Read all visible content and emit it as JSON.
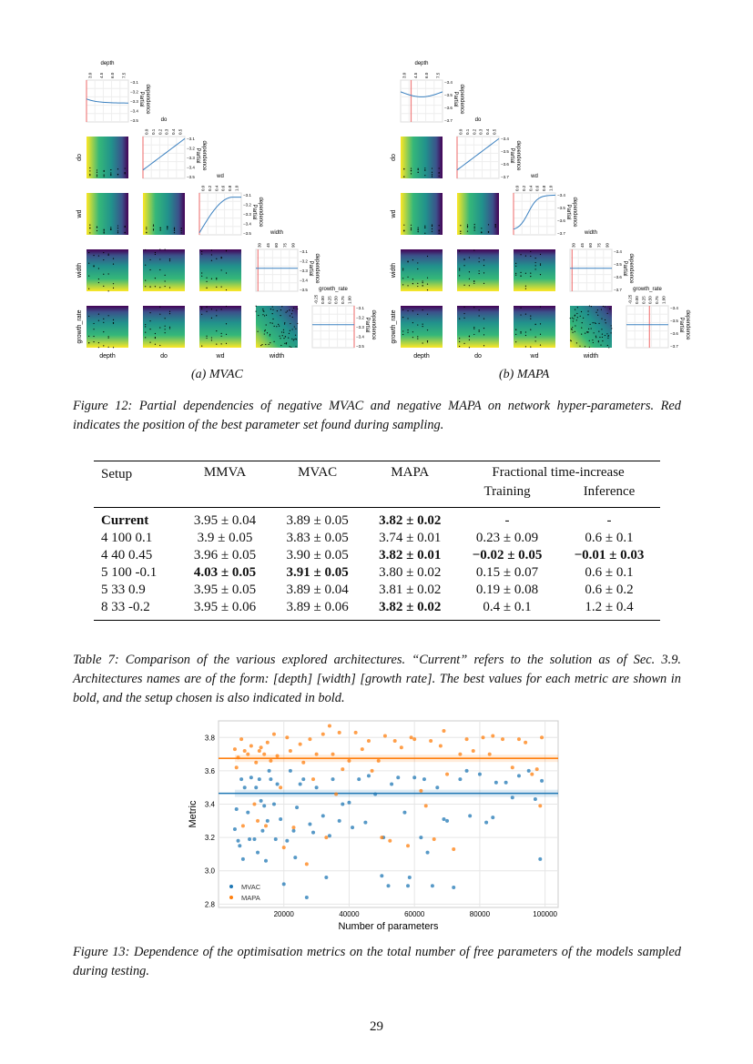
{
  "figure12": {
    "panels": [
      {
        "label": "(a) MVAC",
        "pd_ticks": [
          "−3.1",
          "−3.2",
          "−3.3",
          "−3.4",
          "−3.5"
        ],
        "best": [
          0.0,
          0.0,
          0.0,
          0.05,
          1.0
        ],
        "curves": [
          "flat-down",
          "linear-up",
          "sat-up",
          "flat",
          "flat"
        ]
      },
      {
        "label": "(b) MAPA",
        "pd_ticks": [
          "−3.4",
          "−3.5",
          "−3.6",
          "−3.7"
        ],
        "best": [
          0.25,
          0.0,
          0.0,
          0.05,
          0.55
        ],
        "curves": [
          "dip",
          "linear-up",
          "sig-up",
          "flat",
          "flat"
        ]
      }
    ],
    "params": [
      "depth",
      "do",
      "wd",
      "width",
      "growth_rate"
    ],
    "diag_ticks": [
      [
        "3.0",
        "4.5",
        "6.0",
        "7.5"
      ],
      [
        "0.0",
        "0.1",
        "0.2",
        "0.3",
        "0.4",
        "0.5"
      ],
      [
        "0.0",
        "0.2",
        "0.4",
        "0.6",
        "0.8",
        "1.0"
      ],
      [
        "30",
        "45",
        "60",
        "75",
        "90"
      ],
      [
        "-0.25",
        "0.00",
        "0.25",
        "0.50",
        "0.75",
        "1.00"
      ]
    ],
    "pd_label": "Partial dependence",
    "caption": "Figure 12: Partial dependencies of negative MVAC and negative MAPA on network hyper-parameters. Red indicates the position of the best parameter set found during sampling."
  },
  "table7": {
    "headers": [
      "Setup",
      "MMVA",
      "MVAC",
      "MAPA",
      "Fractional time-increase"
    ],
    "subheaders": [
      "Training",
      "Inference"
    ],
    "rows": [
      {
        "cells": [
          "Current",
          "3.95 ± 0.04",
          "3.89 ± 0.05",
          "3.82 ± 0.02",
          "-",
          "-"
        ],
        "bold": [
          true,
          false,
          false,
          true,
          false,
          false
        ]
      },
      {
        "cells": [
          "4 100 0.1",
          "3.9 ± 0.05",
          "3.83 ± 0.05",
          "3.74 ± 0.01",
          "0.23 ± 0.09",
          "0.6 ± 0.1"
        ],
        "bold": [
          false,
          false,
          false,
          false,
          false,
          false
        ]
      },
      {
        "cells": [
          "4 40 0.45",
          "3.96 ± 0.05",
          "3.90 ± 0.05",
          "3.82 ± 0.01",
          "−0.02 ± 0.05",
          "−0.01 ± 0.03"
        ],
        "bold": [
          false,
          false,
          false,
          true,
          true,
          true
        ]
      },
      {
        "cells": [
          "5 100 -0.1",
          "4.03 ± 0.05",
          "3.91 ± 0.05",
          "3.80 ± 0.02",
          "0.15 ± 0.07",
          "0.6 ± 0.1"
        ],
        "bold": [
          false,
          true,
          true,
          false,
          false,
          false
        ]
      },
      {
        "cells": [
          "5 33 0.9",
          "3.95 ± 0.05",
          "3.89 ± 0.04",
          "3.81 ± 0.02",
          "0.19 ± 0.08",
          "0.6 ± 0.2"
        ],
        "bold": [
          false,
          false,
          false,
          false,
          false,
          false
        ]
      },
      {
        "cells": [
          "8 33 -0.2",
          "3.95 ± 0.06",
          "3.89 ± 0.06",
          "3.82 ± 0.02",
          "0.4 ± 0.1",
          "1.2 ± 0.4"
        ],
        "bold": [
          false,
          false,
          false,
          true,
          false,
          false
        ]
      }
    ],
    "caption": "Table 7: Comparison of the various explored architectures. “Current” refers to the solution as of Sec. 3.9. Architectures names are of the form: [depth] [width] [growth rate]. The best values for each metric are shown in bold, and the setup chosen is also indicated in bold."
  },
  "chart_data": {
    "type": "scatter",
    "xlabel": "Number of parameters",
    "ylabel": "Metric",
    "xlim": [
      0,
      104000
    ],
    "ylim": [
      2.78,
      3.9
    ],
    "xticks": [
      20000,
      40000,
      60000,
      80000,
      100000
    ],
    "yticks": [
      2.8,
      3.0,
      3.2,
      3.4,
      3.6,
      3.8
    ],
    "grid": true,
    "legend": "bottom-left",
    "series": [
      {
        "name": "MVAC",
        "color": "#1f77b4",
        "trend": 3.465,
        "points": [
          [
            5000,
            3.25
          ],
          [
            5500,
            3.37
          ],
          [
            6000,
            3.18
          ],
          [
            6500,
            3.15
          ],
          [
            7000,
            3.55
          ],
          [
            7500,
            3.07
          ],
          [
            8000,
            3.5
          ],
          [
            9000,
            3.35
          ],
          [
            9500,
            3.19
          ],
          [
            10000,
            3.56
          ],
          [
            11000,
            3.19
          ],
          [
            11500,
            3.5
          ],
          [
            12000,
            3.11
          ],
          [
            12500,
            3.55
          ],
          [
            13000,
            3.42
          ],
          [
            13500,
            3.24
          ],
          [
            14000,
            3.39
          ],
          [
            14500,
            3.06
          ],
          [
            15000,
            3.3
          ],
          [
            15500,
            3.6
          ],
          [
            16000,
            3.55
          ],
          [
            17000,
            3.4
          ],
          [
            17500,
            3.19
          ],
          [
            18000,
            3.52
          ],
          [
            19000,
            3.31
          ],
          [
            20000,
            2.92
          ],
          [
            21000,
            3.18
          ],
          [
            22000,
            3.6
          ],
          [
            23000,
            3.24
          ],
          [
            23500,
            3.08
          ],
          [
            24000,
            3.38
          ],
          [
            25000,
            3.52
          ],
          [
            26000,
            3.55
          ],
          [
            27000,
            2.84
          ],
          [
            28000,
            3.28
          ],
          [
            29000,
            3.23
          ],
          [
            30000,
            3.5
          ],
          [
            32000,
            3.33
          ],
          [
            33000,
            2.96
          ],
          [
            34000,
            3.21
          ],
          [
            35000,
            3.55
          ],
          [
            37000,
            3.3
          ],
          [
            38000,
            3.4
          ],
          [
            40000,
            3.41
          ],
          [
            41000,
            3.26
          ],
          [
            43000,
            3.55
          ],
          [
            45000,
            3.29
          ],
          [
            46000,
            3.57
          ],
          [
            48000,
            3.46
          ],
          [
            50000,
            2.97
          ],
          [
            50500,
            3.2
          ],
          [
            52000,
            2.91
          ],
          [
            53000,
            3.52
          ],
          [
            55000,
            3.56
          ],
          [
            57000,
            3.35
          ],
          [
            58000,
            2.91
          ],
          [
            58500,
            2.96
          ],
          [
            60000,
            3.56
          ],
          [
            62000,
            3.2
          ],
          [
            63000,
            3.55
          ],
          [
            64000,
            3.11
          ],
          [
            65500,
            2.91
          ],
          [
            67000,
            3.5
          ],
          [
            69000,
            3.31
          ],
          [
            70000,
            3.3
          ],
          [
            72000,
            2.9
          ],
          [
            74000,
            3.55
          ],
          [
            76000,
            3.6
          ],
          [
            77000,
            3.33
          ],
          [
            80000,
            3.58
          ],
          [
            82000,
            3.29
          ],
          [
            84000,
            3.32
          ],
          [
            85000,
            3.53
          ],
          [
            88000,
            3.53
          ],
          [
            90000,
            3.44
          ],
          [
            92000,
            3.57
          ],
          [
            95000,
            3.6
          ],
          [
            97000,
            3.43
          ],
          [
            98500,
            3.07
          ],
          [
            99000,
            3.54
          ]
        ]
      },
      {
        "name": "MAPA",
        "color": "#ff7f0e",
        "trend": 3.675,
        "points": [
          [
            5000,
            3.73
          ],
          [
            5500,
            3.62
          ],
          [
            6000,
            3.68
          ],
          [
            7000,
            3.79
          ],
          [
            7500,
            3.27
          ],
          [
            8000,
            3.72
          ],
          [
            9000,
            3.7
          ],
          [
            10000,
            3.75
          ],
          [
            11000,
            3.4
          ],
          [
            11500,
            3.65
          ],
          [
            12000,
            3.3
          ],
          [
            12500,
            3.72
          ],
          [
            13000,
            3.74
          ],
          [
            14000,
            3.7
          ],
          [
            14500,
            3.27
          ],
          [
            15000,
            3.77
          ],
          [
            16000,
            3.66
          ],
          [
            17000,
            3.82
          ],
          [
            18000,
            3.69
          ],
          [
            19000,
            3.5
          ],
          [
            20000,
            3.14
          ],
          [
            21000,
            3.8
          ],
          [
            22000,
            3.72
          ],
          [
            23000,
            3.26
          ],
          [
            25000,
            3.76
          ],
          [
            26000,
            3.65
          ],
          [
            27000,
            3.04
          ],
          [
            28000,
            3.79
          ],
          [
            29000,
            3.55
          ],
          [
            30000,
            3.7
          ],
          [
            32000,
            3.82
          ],
          [
            33000,
            3.2
          ],
          [
            34000,
            3.87
          ],
          [
            35000,
            3.7
          ],
          [
            36000,
            3.46
          ],
          [
            37000,
            3.83
          ],
          [
            38000,
            3.61
          ],
          [
            40000,
            3.66
          ],
          [
            42000,
            3.83
          ],
          [
            44000,
            3.73
          ],
          [
            46000,
            3.78
          ],
          [
            47000,
            3.6
          ],
          [
            49000,
            3.66
          ],
          [
            50000,
            3.2
          ],
          [
            51000,
            3.81
          ],
          [
            52500,
            3.18
          ],
          [
            54000,
            3.78
          ],
          [
            56000,
            3.74
          ],
          [
            58000,
            3.15
          ],
          [
            59000,
            3.8
          ],
          [
            60000,
            3.79
          ],
          [
            62000,
            3.48
          ],
          [
            63500,
            3.39
          ],
          [
            65000,
            3.78
          ],
          [
            66000,
            3.19
          ],
          [
            68000,
            3.75
          ],
          [
            69000,
            3.84
          ],
          [
            70000,
            3.58
          ],
          [
            72000,
            3.13
          ],
          [
            74000,
            3.7
          ],
          [
            76000,
            3.79
          ],
          [
            78000,
            3.72
          ],
          [
            81000,
            3.8
          ],
          [
            83000,
            3.7
          ],
          [
            84000,
            3.81
          ],
          [
            87000,
            3.79
          ],
          [
            90000,
            3.62
          ],
          [
            92000,
            3.79
          ],
          [
            94000,
            3.77
          ],
          [
            96000,
            3.58
          ],
          [
            97500,
            3.61
          ],
          [
            98500,
            3.39
          ],
          [
            99000,
            3.8
          ]
        ]
      }
    ]
  },
  "figure13": {
    "caption": "Figure 13: Dependence of the optimisation metrics on the total number of free parameters of the models sampled during testing."
  },
  "page_number": "29"
}
